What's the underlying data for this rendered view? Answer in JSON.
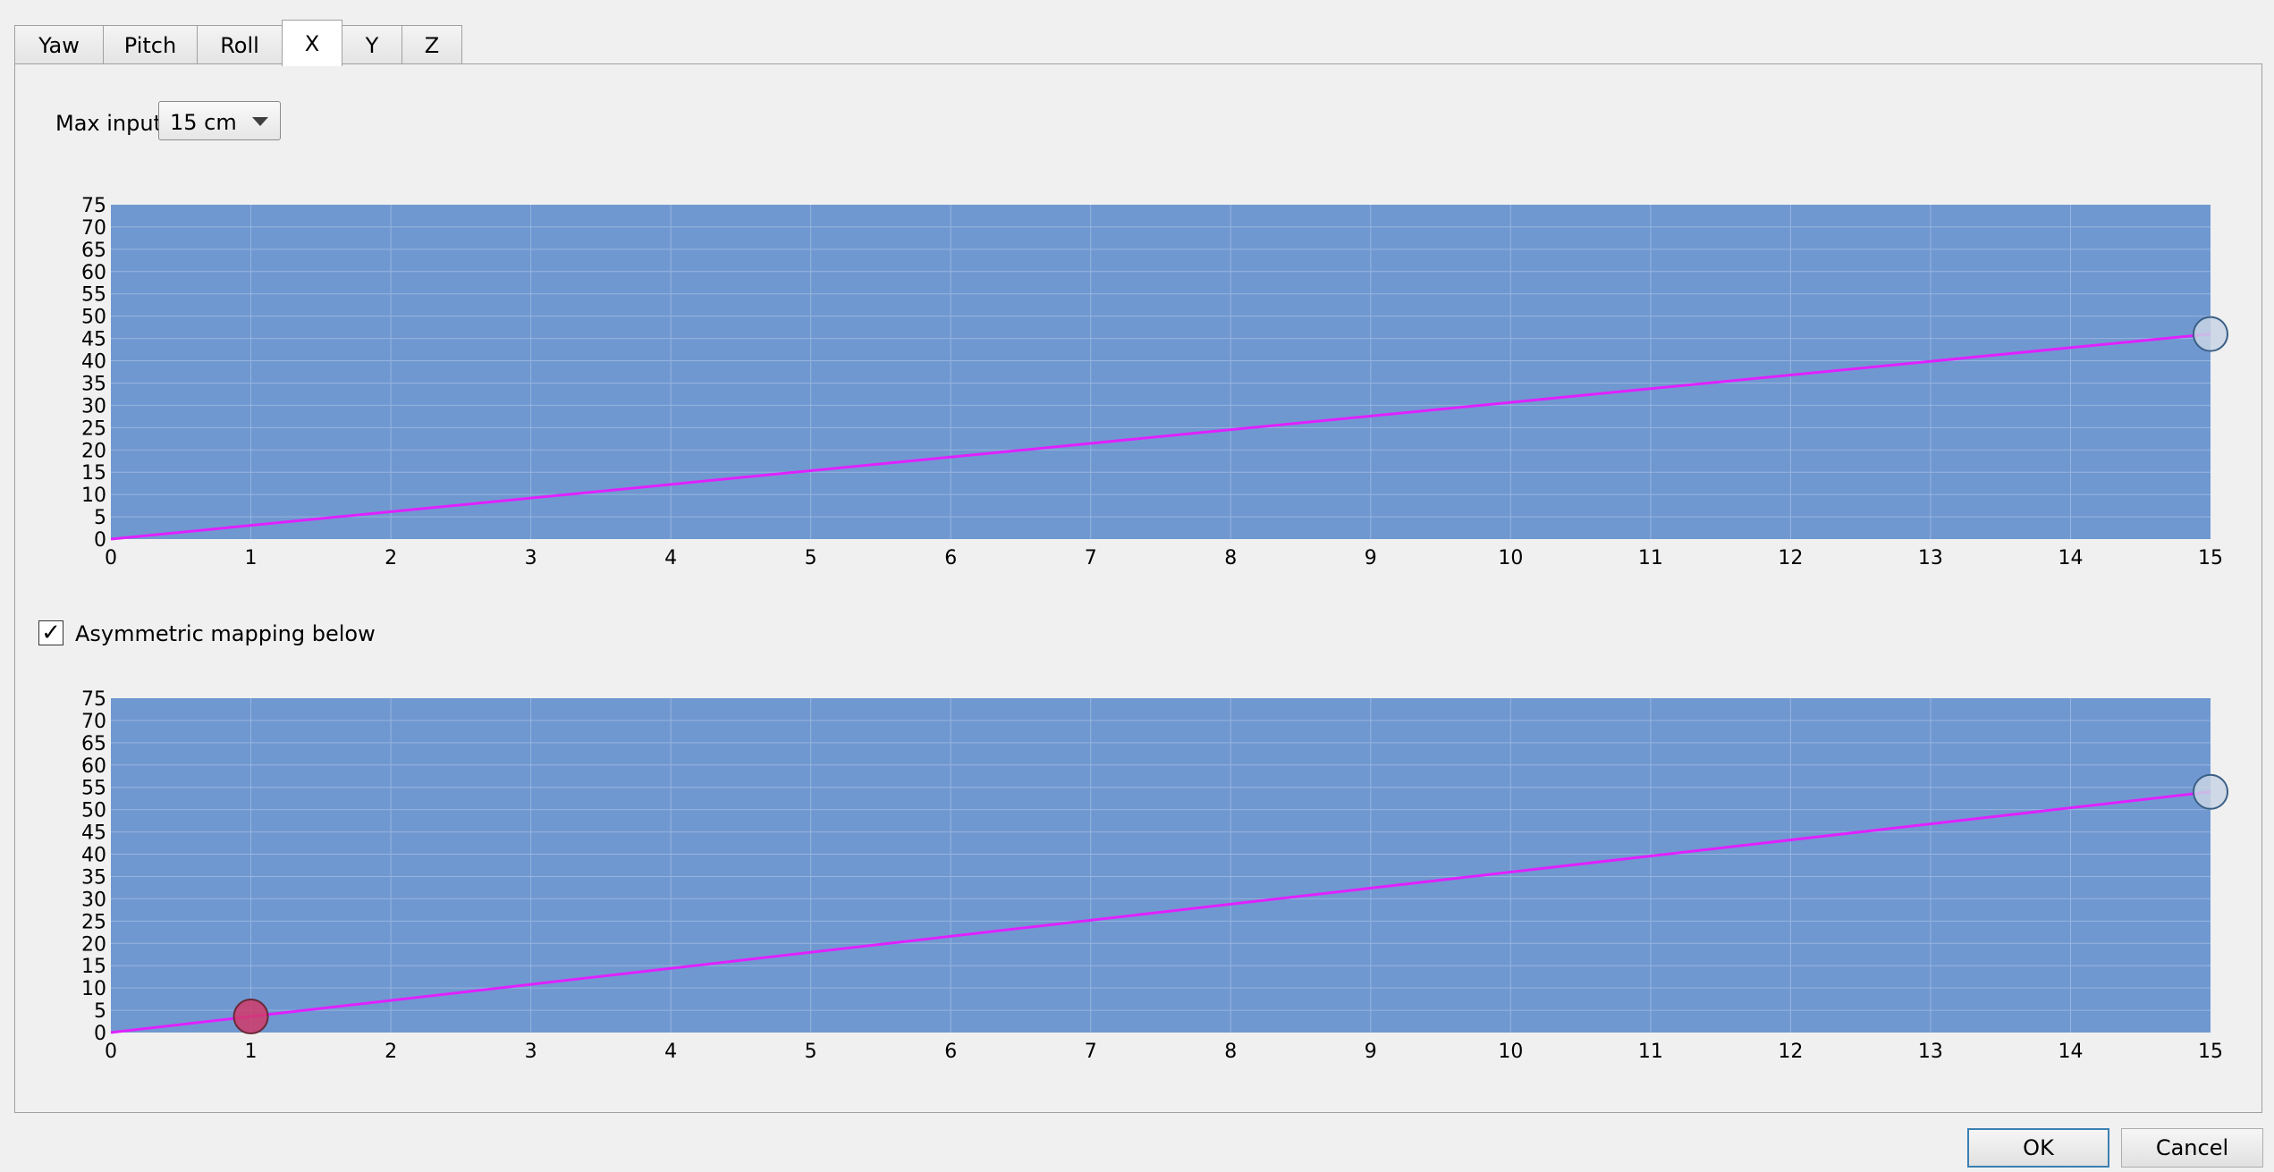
{
  "tabs": [
    {
      "label": "Yaw"
    },
    {
      "label": "Pitch"
    },
    {
      "label": "Roll"
    },
    {
      "label": "X",
      "active": true
    },
    {
      "label": "Y"
    },
    {
      "label": "Z"
    }
  ],
  "max_input": {
    "label": "Max input",
    "value": "15 cm"
  },
  "asymmetric": {
    "label": "Asymmetric mapping below",
    "checked": true,
    "mark": "✓"
  },
  "buttons": {
    "ok": "OK",
    "cancel": "Cancel"
  },
  "colors": {
    "plot_bg": "#7098d0",
    "grid": "#97b4de",
    "curve": "#e020ff",
    "handle": "#c8d4e4",
    "handle_active": "#d03a6a"
  },
  "chart_data": [
    {
      "type": "line",
      "name": "upper",
      "xlim": [
        0,
        15
      ],
      "ylim": [
        0,
        75
      ],
      "xticks": [
        0,
        1,
        2,
        3,
        4,
        5,
        6,
        7,
        8,
        9,
        10,
        11,
        12,
        13,
        14,
        15
      ],
      "yticks": [
        0,
        5,
        10,
        15,
        20,
        25,
        30,
        35,
        40,
        45,
        50,
        55,
        60,
        65,
        70,
        75
      ],
      "points": [
        [
          0,
          0
        ],
        [
          15,
          46
        ]
      ],
      "handles": [
        {
          "x": 15,
          "y": 46,
          "active": false
        }
      ]
    },
    {
      "type": "line",
      "name": "lower",
      "xlim": [
        0,
        15
      ],
      "ylim": [
        0,
        75
      ],
      "xticks": [
        0,
        1,
        2,
        3,
        4,
        5,
        6,
        7,
        8,
        9,
        10,
        11,
        12,
        13,
        14,
        15
      ],
      "yticks": [
        0,
        5,
        10,
        15,
        20,
        25,
        30,
        35,
        40,
        45,
        50,
        55,
        60,
        65,
        70,
        75
      ],
      "points": [
        [
          0,
          0
        ],
        [
          1,
          3.6
        ],
        [
          15,
          54
        ]
      ],
      "handles": [
        {
          "x": 1,
          "y": 3.6,
          "active": true
        },
        {
          "x": 15,
          "y": 54,
          "active": false
        }
      ]
    }
  ]
}
